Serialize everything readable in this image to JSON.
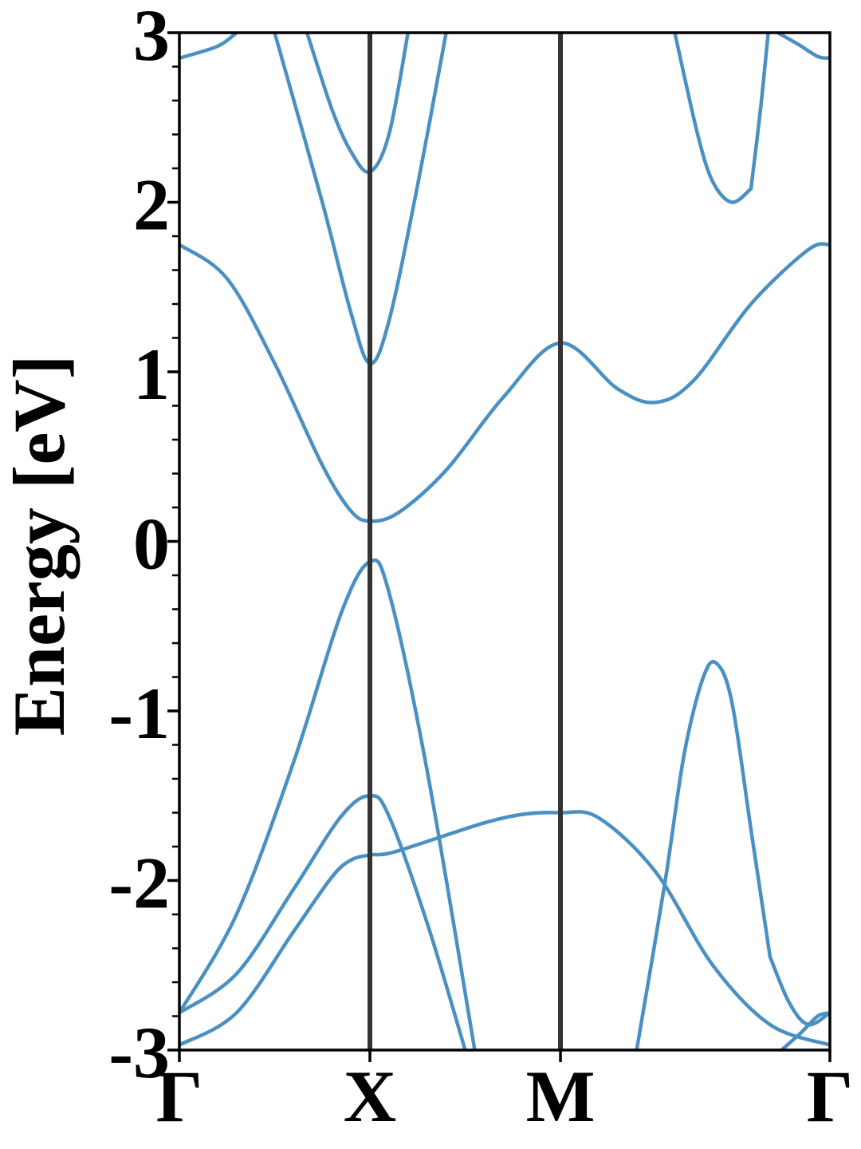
{
  "chart_data": {
    "type": "line",
    "title": "",
    "ylabel": "Energy [eV]",
    "xlabel": "",
    "ylim": [
      -3,
      3
    ],
    "yticks": [
      -3,
      -2,
      -1,
      0,
      1,
      2,
      3
    ],
    "ytick_labels": [
      "-3",
      "-2",
      "-1",
      "0",
      "1",
      "2",
      "3"
    ],
    "yminor_step": 0.2,
    "kpoints": [
      {
        "label": "Γ",
        "x": 0
      },
      {
        "label": "X",
        "x": 1
      },
      {
        "label": "M",
        "x": 2
      },
      {
        "label": "Γ",
        "x": 3.414
      }
    ],
    "xlim": [
      0,
      3.414
    ],
    "grid": false,
    "band_color": "#4a90c2",
    "kline_color": "#333333",
    "series": [
      {
        "x": [
          0,
          0.3,
          0.6,
          0.8,
          0.9,
          1.0,
          1.1,
          1.3,
          1.6,
          1.8,
          2.0,
          2.2,
          2.5,
          2.8,
          3.1,
          3.414
        ],
        "values": [
          -2.97,
          -2.78,
          -2.3,
          -1.98,
          -1.88,
          -1.85,
          -1.84,
          -1.77,
          -1.66,
          -1.61,
          -1.6,
          -1.63,
          -1.95,
          -2.5,
          -2.85,
          -2.97
        ]
      },
      {
        "x": [
          0,
          0.3,
          0.6,
          0.85,
          1.0,
          1.1,
          1.3,
          1.5
        ],
        "values": [
          -2.78,
          -2.55,
          -2.05,
          -1.62,
          -1.5,
          -1.62,
          -2.25,
          -3.0
        ]
      },
      {
        "x": [
          0,
          0.3,
          0.6,
          0.85,
          1.0,
          1.1,
          1.3,
          1.55
        ],
        "values": [
          -2.78,
          -2.2,
          -1.3,
          -0.42,
          -0.12,
          -0.3,
          -1.35,
          -3.0
        ]
      },
      {
        "x": [
          0,
          0.25,
          0.5,
          0.75,
          0.9,
          1.0,
          1.15,
          1.4,
          1.7,
          2.0,
          2.3,
          2.5,
          2.7,
          3.0,
          3.3,
          3.414
        ],
        "values": [
          1.75,
          1.55,
          1.05,
          0.45,
          0.18,
          0.12,
          0.17,
          0.42,
          0.85,
          1.17,
          0.9,
          0.82,
          0.95,
          1.4,
          1.72,
          1.75
        ]
      },
      {
        "x": [
          0.5,
          0.75,
          0.9,
          1.0,
          1.1,
          1.25,
          1.4
        ],
        "values": [
          3.0,
          2.0,
          1.35,
          1.05,
          1.3,
          2.1,
          3.0
        ]
      },
      {
        "x": [
          0.67,
          0.8,
          0.9,
          1.0,
          1.1,
          1.2
        ],
        "values": [
          3.0,
          2.55,
          2.3,
          2.18,
          2.4,
          3.0
        ]
      },
      {
        "x": [
          2.4,
          2.55,
          2.65,
          2.75,
          2.82,
          2.9,
          3.0,
          3.1
        ],
        "values": [
          -3.0,
          -2.0,
          -1.25,
          -0.8,
          -0.72,
          -0.95,
          -1.7,
          -2.45
        ]
      },
      {
        "x": [
          3.1,
          3.2,
          3.3,
          3.414
        ],
        "values": [
          -2.45,
          -2.72,
          -2.85,
          -2.78
        ]
      },
      {
        "x": [
          3.16,
          3.26,
          3.35,
          3.414
        ],
        "values": [
          -3.0,
          -2.9,
          -2.8,
          -2.78
        ]
      },
      {
        "x": [
          2.6,
          2.72,
          2.8,
          2.9,
          3.0
        ],
        "values": [
          3.0,
          2.4,
          2.12,
          2.0,
          2.08
        ]
      },
      {
        "x": [
          3.0,
          3.05,
          3.09
        ],
        "values": [
          2.08,
          2.55,
          3.0
        ]
      },
      {
        "x": [
          0,
          0.2,
          0.3
        ],
        "values": [
          2.85,
          2.92,
          3.0
        ]
      },
      {
        "x": [
          3.14,
          3.25,
          3.35,
          3.414
        ],
        "values": [
          3.0,
          2.93,
          2.86,
          2.85
        ]
      }
    ]
  }
}
